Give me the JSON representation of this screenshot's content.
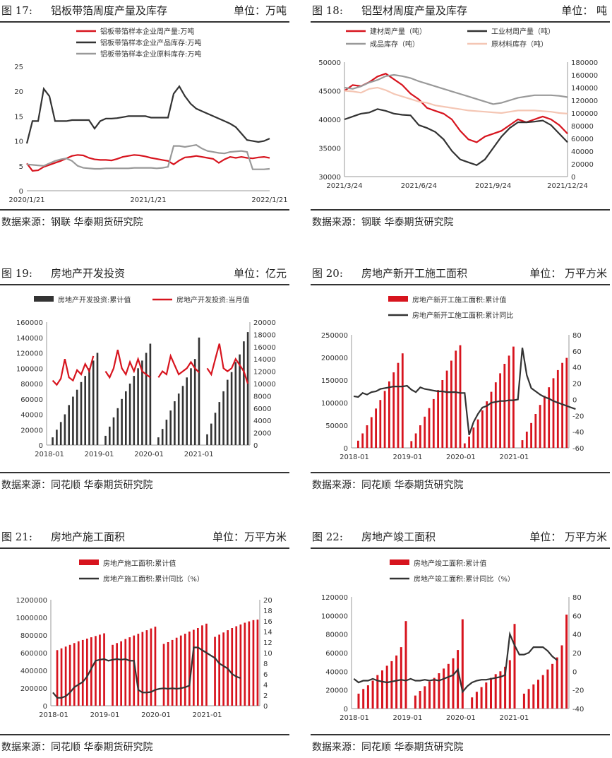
{
  "panels": [
    {
      "fig_label": "图 17:",
      "title": "铝板带箔周度产量及库存",
      "unit": "单位：万吨",
      "source": "数据来源：钢联  华泰期货研究院",
      "chart": {
        "type": "line",
        "x_ticks": [
          "2020/1/21",
          "2021/1/21",
          "2022/1/21"
        ],
        "y_left": {
          "min": 0,
          "max": 25,
          "ticks": [
            0,
            5,
            10,
            15,
            20,
            25
          ]
        },
        "legend_position": "top",
        "series": [
          {
            "name": "铝板带箔样本企业周产量:万吨",
            "color": "#d7141e",
            "axis": "left",
            "values": [
              5.5,
              4.0,
              4.1,
              4.8,
              5.2,
              5.6,
              6.0,
              6.5,
              7.0,
              7.2,
              7.1,
              6.6,
              6.3,
              6.2,
              6.2,
              6.1,
              6.4,
              6.8,
              7.0,
              7.2,
              7.1,
              6.9,
              6.6,
              6.4,
              6.2,
              6.0,
              5.3,
              6.1,
              6.7,
              6.8,
              7.0,
              6.8,
              6.6,
              6.4,
              5.6,
              6.3,
              6.8,
              6.6,
              6.8,
              6.6,
              6.5,
              6.7,
              6.8,
              6.6
            ]
          },
          {
            "name": "铝板带箔样本企业产品库存:万吨",
            "color": "#333333",
            "axis": "left",
            "values": [
              9.5,
              14.0,
              14.0,
              20.5,
              19.0,
              14.0,
              14.0,
              14.0,
              14.2,
              14.2,
              14.2,
              14.2,
              12.5,
              14.0,
              14.5,
              14.5,
              14.6,
              14.8,
              15.0,
              15.0,
              15.0,
              15.0,
              14.7,
              14.7,
              14.7,
              14.7,
              19.5,
              21.0,
              19.0,
              17.5,
              16.5,
              16.0,
              15.5,
              15.0,
              14.5,
              14.0,
              13.5,
              12.8,
              11.5,
              10.2,
              10.0,
              9.8,
              10.0,
              10.5
            ]
          },
          {
            "name": "铝板带箔样本企业原料库存:万吨",
            "color": "#999999",
            "axis": "left",
            "values": [
              5.3,
              5.2,
              5.1,
              5.0,
              5.5,
              6.0,
              6.3,
              6.5,
              6.0,
              5.0,
              4.6,
              4.5,
              4.4,
              4.4,
              4.5,
              4.5,
              4.5,
              4.5,
              4.5,
              4.6,
              4.6,
              4.6,
              4.6,
              4.5,
              4.6,
              4.8,
              9.0,
              9.0,
              8.8,
              9.0,
              9.2,
              8.5,
              8.0,
              7.8,
              7.6,
              7.5,
              7.8,
              7.9,
              8.0,
              7.8,
              4.3,
              4.3,
              4.3,
              4.4
            ]
          }
        ]
      }
    },
    {
      "fig_label": "图 18:",
      "title": "铝型材周度产量及库存",
      "unit": "单位：  吨",
      "source": "数据来源：钢联  华泰期货研究院",
      "chart": {
        "type": "line",
        "x_ticks": [
          "2021/3/24",
          "2021/6/24",
          "2021/9/24",
          "2021/12/24"
        ],
        "y_left": {
          "min": 30000,
          "max": 50000,
          "ticks": [
            30000,
            35000,
            40000,
            45000,
            50000
          ]
        },
        "y_right": {
          "min": 0,
          "max": 180000,
          "ticks": [
            0,
            20000,
            40000,
            60000,
            80000,
            100000,
            120000,
            140000,
            160000,
            180000
          ]
        },
        "legend_position": "top",
        "series": [
          {
            "name": "建材周产量（吨）",
            "color": "#d7141e",
            "axis": "left",
            "values": [
              45000,
              46000,
              45800,
              46500,
              47500,
              48000,
              47000,
              46000,
              44500,
              43500,
              42000,
              41500,
              41000,
              40000,
              38000,
              36500,
              36000,
              37000,
              37500,
              38000,
              39000,
              40000,
              39500,
              40000,
              40500,
              40000,
              39000,
              37500
            ]
          },
          {
            "name": "工业材周产量（吨）",
            "color": "#333333",
            "axis": "left",
            "values": [
              40000,
              40500,
              41000,
              41200,
              41800,
              41500,
              41000,
              40800,
              40700,
              39000,
              38500,
              37800,
              36500,
              34500,
              33000,
              32500,
              32000,
              33000,
              35000,
              37000,
              38500,
              39500,
              39500,
              39600,
              39800,
              39000,
              37500,
              36000
            ]
          },
          {
            "name": "成品库存（吨）",
            "color": "#999999",
            "axis": "right",
            "values": [
              140000,
              138000,
              142000,
              148000,
              152000,
              158000,
              160000,
              158000,
              155000,
              150000,
              146000,
              142000,
              138000,
              134000,
              130000,
              126000,
              122000,
              118000,
              114000,
              116000,
              120000,
              124000,
              126000,
              128000,
              128000,
              128000,
              127000,
              125000
            ]
          },
          {
            "name": "原材料库存（吨）",
            "color": "#f4c6b4",
            "axis": "right",
            "values": [
              135000,
              134000,
              132000,
              138000,
              140000,
              136000,
              130000,
              126000,
              122000,
              118000,
              116000,
              112000,
              110000,
              108000,
              106000,
              104000,
              103000,
              102000,
              101000,
              100000,
              102000,
              104000,
              104000,
              104000,
              103000,
              102000,
              100000,
              99000
            ]
          }
        ]
      }
    },
    {
      "fig_label": "图 19:",
      "title": "房地产开发投资",
      "unit": "单位：亿元",
      "source": "数据来源：同花顺  华泰期货研究院",
      "chart": {
        "type": "bar-line",
        "x_ticks": [
          "2018-01",
          "2019-01",
          "2020-01",
          "2021-01"
        ],
        "y_left": {
          "min": 0,
          "max": 160000,
          "ticks": [
            0,
            20000,
            40000,
            60000,
            80000,
            100000,
            120000,
            140000,
            160000
          ]
        },
        "y_right": {
          "min": 0,
          "max": 20000,
          "ticks": [
            0,
            2000,
            4000,
            6000,
            8000,
            10000,
            12000,
            14000,
            16000,
            18000,
            20000
          ]
        },
        "legend_position": "top",
        "bars": {
          "name": "房地产开发投资:累计值",
          "color": "#333333",
          "values": [
            null,
            10000,
            20000,
            30000,
            40000,
            52000,
            63000,
            72000,
            82000,
            90000,
            100000,
            110000,
            120000,
            null,
            12000,
            24000,
            36000,
            48000,
            60000,
            70000,
            80000,
            90000,
            100000,
            110000,
            120000,
            132000,
            null,
            10000,
            21000,
            33000,
            45000,
            57000,
            67000,
            77000,
            88000,
            100000,
            112000,
            140000,
            null,
            14000,
            28000,
            42000,
            56000,
            70000,
            85000,
            95000,
            108000,
            118000,
            135000,
            147000
          ]
        },
        "line": {
          "name": "房地产开发投资:当月值",
          "color": "#d7141e",
          "values": [
            null,
            10500,
            9800,
            10800,
            14000,
            11000,
            10500,
            12200,
            11500,
            13200,
            12000,
            14500,
            null,
            null,
            12000,
            11000,
            12500,
            15500,
            12500,
            11500,
            13500,
            12000,
            14000,
            12000,
            11500,
            11000,
            null,
            11000,
            12000,
            11500,
            14500,
            13000,
            11500,
            12000,
            12500,
            13500,
            12500,
            11800,
            null,
            12500,
            11500,
            14000,
            16500,
            12500,
            12000,
            12500,
            14000,
            13000,
            12000,
            10000
          ]
        }
      }
    },
    {
      "fig_label": "图 20:",
      "title": "房地产新开工施工面积",
      "unit": "单位：  万平方米",
      "source": "数据来源：同花顺  华泰期货研究院",
      "chart": {
        "type": "bar-line",
        "x_ticks": [
          "2018-01",
          "2019-01",
          "2020-01",
          "2021-01"
        ],
        "y_left": {
          "min": 0,
          "max": 250000,
          "ticks": [
            0,
            50000,
            100000,
            150000,
            200000,
            250000
          ]
        },
        "y_right": {
          "min": -60,
          "max": 80,
          "ticks": [
            -60,
            -40,
            -20,
            0,
            20,
            40,
            60,
            80
          ]
        },
        "legend_position": "top",
        "bars": {
          "name": "房地产新开工施工面积:累计值",
          "color": "#d7141e",
          "values": [
            null,
            16000,
            32000,
            50000,
            68000,
            87000,
            106000,
            126000,
            147000,
            167000,
            188000,
            209000,
            null,
            15000,
            32000,
            50000,
            69000,
            88000,
            108000,
            128000,
            150000,
            171000,
            193000,
            215000,
            227000,
            10000,
            25000,
            45000,
            63000,
            83000,
            103000,
            124000,
            145000,
            165000,
            186000,
            204000,
            224000,
            null,
            17000,
            36000,
            55000,
            75000,
            95000,
            115000,
            134000,
            154000,
            172000,
            188000,
            199000
          ]
        },
        "line": {
          "name": "房地产新开工施工面积:累计同比",
          "color": "#333333",
          "values": [
            4,
            3,
            8,
            6,
            9,
            10,
            13,
            14,
            15,
            16,
            16,
            16,
            17,
            12,
            9,
            15,
            13,
            12,
            11,
            10,
            10,
            9,
            9,
            9,
            8,
            8,
            -44,
            -28,
            -18,
            -10,
            -8,
            -4,
            -3,
            -2,
            -2,
            -1,
            -1,
            0,
            64,
            30,
            14,
            10,
            6,
            3,
            1,
            -2,
            -4,
            -6,
            -8,
            -10,
            -12
          ]
        }
      }
    },
    {
      "fig_label": "图 21:",
      "title": "房地产施工面积",
      "unit": "单位：万平方米",
      "source": "数据来源：同花顺  华泰期货研究院",
      "chart": {
        "type": "bar-line",
        "x_ticks": [
          "2018-01",
          "2019-01",
          "2020-01",
          "2021-01"
        ],
        "y_left": {
          "min": 0,
          "max": 1200000,
          "ticks": [
            0,
            200000,
            400000,
            600000,
            800000,
            1000000,
            1200000
          ]
        },
        "y_right": {
          "min": 0,
          "max": 20,
          "ticks": [
            0,
            2,
            4,
            6,
            8,
            10,
            12,
            14,
            16,
            18,
            20
          ]
        },
        "legend_position": "top",
        "bars": {
          "name": "房地产施工面积:累计值",
          "color": "#d7141e",
          "values": [
            null,
            630000,
            650000,
            670000,
            690000,
            710000,
            730000,
            745000,
            760000,
            775000,
            790000,
            805000,
            820000,
            null,
            690000,
            710000,
            730000,
            755000,
            775000,
            795000,
            815000,
            835000,
            855000,
            875000,
            895000,
            null,
            700000,
            720000,
            745000,
            770000,
            795000,
            815000,
            840000,
            860000,
            880000,
            910000,
            930000,
            null,
            780000,
            805000,
            830000,
            855000,
            880000,
            900000,
            920000,
            940000,
            955000,
            970000,
            975000
          ]
        },
        "line": {
          "name": "房地产施工面积:累计同比（%）",
          "color": "#333333",
          "values": [
            2.5,
            1.5,
            1.5,
            1.8,
            2.5,
            3.5,
            4,
            4.5,
            5.5,
            7,
            8.5,
            8.7,
            8.8,
            8.5,
            8.7,
            8.8,
            8.7,
            8.8,
            8.5,
            8.5,
            3,
            2.5,
            2.5,
            2.6,
            3,
            3.2,
            3.3,
            3.2,
            3.3,
            3.2,
            3.3,
            3.5,
            3.8,
            11,
            11,
            10.5,
            10,
            9.5,
            9,
            8,
            7.5,
            7,
            6,
            5.5,
            5.2
          ]
        }
      }
    },
    {
      "fig_label": "图 22:",
      "title": "房地产竣工面积",
      "unit": "单位：  万平方米",
      "source": "数据来源：同花顺  华泰期货研究院",
      "chart": {
        "type": "bar-line",
        "x_ticks": [
          "2018-01",
          "2019-01",
          "2020-01",
          "2021-01"
        ],
        "y_left": {
          "min": 0,
          "max": 120000,
          "ticks": [
            0,
            20000,
            40000,
            60000,
            80000,
            100000,
            120000
          ]
        },
        "y_right": {
          "min": -40,
          "max": 80,
          "ticks": [
            -40,
            -20,
            0,
            20,
            40,
            60,
            80
          ]
        },
        "legend_position": "top",
        "bars": {
          "name": "房地产竣工面积:累计值",
          "color": "#d7141e",
          "values": [
            null,
            16000,
            21000,
            25000,
            30000,
            36000,
            41000,
            46000,
            51000,
            57000,
            66000,
            94000,
            null,
            14000,
            19000,
            24000,
            29000,
            33000,
            38000,
            43000,
            48000,
            54000,
            63000,
            96000,
            null,
            12000,
            18000,
            23000,
            28000,
            33000,
            37000,
            40000,
            45000,
            52000,
            91000,
            null,
            16000,
            21000,
            26000,
            31000,
            36000,
            42000,
            48000,
            55000,
            68000,
            101000
          ]
        },
        "line": {
          "name": "房地产竣工面积:累计同比（%）",
          "color": "#333333",
          "values": [
            -8,
            -12,
            -10,
            -10,
            -8,
            -10,
            -11,
            -12,
            -11,
            -10,
            -9,
            -10,
            -8,
            -10,
            -10,
            -9,
            -10,
            -9,
            -10,
            -8,
            -6,
            -4,
            2,
            -22,
            -16,
            -12,
            -10,
            -9,
            -9,
            -8,
            -7,
            -6,
            -4,
            40,
            28,
            18,
            18,
            20,
            26,
            26,
            26,
            22,
            16,
            12
          ]
        }
      }
    }
  ]
}
